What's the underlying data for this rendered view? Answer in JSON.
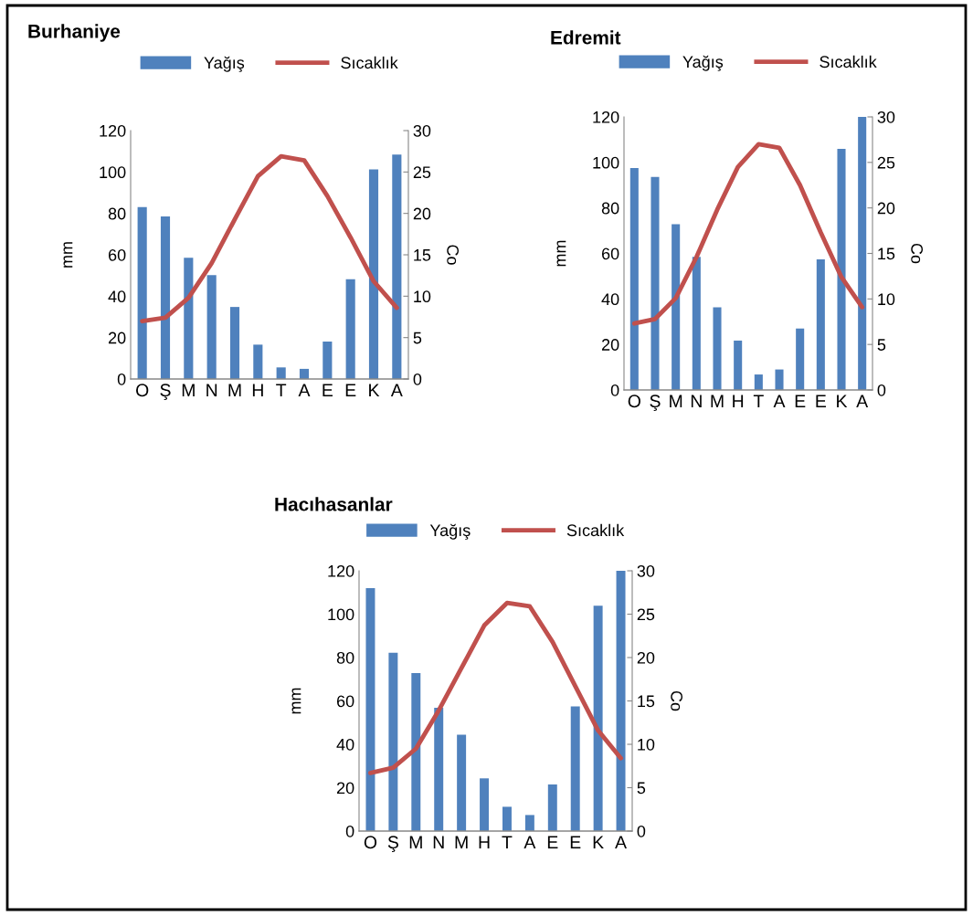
{
  "chart_data": [
    {
      "type": "bar",
      "title": "Burhaniye",
      "categories": [
        "O",
        "Ş",
        "M",
        "N",
        "M",
        "H",
        "T",
        "A",
        "E",
        "E",
        "K",
        "A"
      ],
      "ylabel": "mm",
      "y2label": "Co",
      "ylim": [
        0,
        120
      ],
      "yticks": [
        0,
        20,
        40,
        60,
        80,
        100,
        120
      ],
      "y2lim": [
        0,
        30
      ],
      "y2ticks": [
        0,
        5,
        10,
        15,
        20,
        25,
        30
      ],
      "legend": "top",
      "grid": false,
      "series": [
        {
          "name": "Yağış",
          "color": "#4f81bd",
          "values": [
            83,
            78.5,
            58.6,
            50.2,
            34.8,
            16.6,
            5.6,
            4.9,
            18.1,
            48.2,
            101.3,
            108.4
          ]
        },
        {
          "name": "Sıcaklık",
          "type": "line",
          "axis": "y2",
          "color": "#c0504d",
          "values": [
            7.0,
            7.4,
            9.8,
            14.0,
            19.3,
            24.5,
            26.9,
            26.4,
            22.1,
            17.1,
            11.8,
            8.6
          ]
        }
      ]
    },
    {
      "type": "bar",
      "title": "Edremit",
      "categories": [
        "O",
        "Ş",
        "M",
        "N",
        "M",
        "H",
        "T",
        "A",
        "E",
        "E",
        "K",
        "A"
      ],
      "ylabel": "mm",
      "y2label": "Co",
      "ylim": [
        0,
        120
      ],
      "yticks": [
        0,
        20,
        40,
        60,
        80,
        100,
        120
      ],
      "y2lim": [
        0,
        30
      ],
      "y2ticks": [
        0,
        5,
        10,
        15,
        20,
        25,
        30
      ],
      "legend": "top",
      "grid": false,
      "series": [
        {
          "name": "Yağış",
          "color": "#4f81bd",
          "values": [
            97.5,
            93.6,
            72.8,
            58.5,
            36.3,
            21.7,
            6.8,
            9.0,
            27.0,
            57.4,
            106,
            120
          ]
        },
        {
          "name": "Sıcaklık",
          "type": "line",
          "axis": "y2",
          "color": "#c0504d",
          "values": [
            7.3,
            7.8,
            10.1,
            14.6,
            19.8,
            24.5,
            27.0,
            26.6,
            22.5,
            17.3,
            12.4,
            9.1
          ]
        }
      ]
    },
    {
      "type": "bar",
      "title": "Hacıhasanlar",
      "categories": [
        "O",
        "Ş",
        "M",
        "N",
        "M",
        "H",
        "T",
        "A",
        "E",
        "E",
        "K",
        "A"
      ],
      "ylabel": "mm",
      "y2label": "Co",
      "ylim": [
        0,
        120
      ],
      "yticks": [
        0,
        20,
        40,
        60,
        80,
        100,
        120
      ],
      "y2lim": [
        0,
        30
      ],
      "y2ticks": [
        0,
        5,
        10,
        15,
        20,
        25,
        30
      ],
      "legend": "top",
      "grid": false,
      "series": [
        {
          "name": "Yağış",
          "color": "#4f81bd",
          "values": [
            112,
            82.2,
            72.8,
            56.8,
            44.4,
            24.3,
            11.2,
            7.4,
            21.5,
            57.5,
            103.9,
            120
          ]
        },
        {
          "name": "Sıcaklık",
          "type": "line",
          "axis": "y2",
          "color": "#c0504d",
          "values": [
            6.7,
            7.3,
            9.5,
            13.9,
            18.8,
            23.7,
            26.3,
            25.9,
            21.8,
            16.7,
            11.6,
            8.4
          ]
        }
      ]
    }
  ]
}
